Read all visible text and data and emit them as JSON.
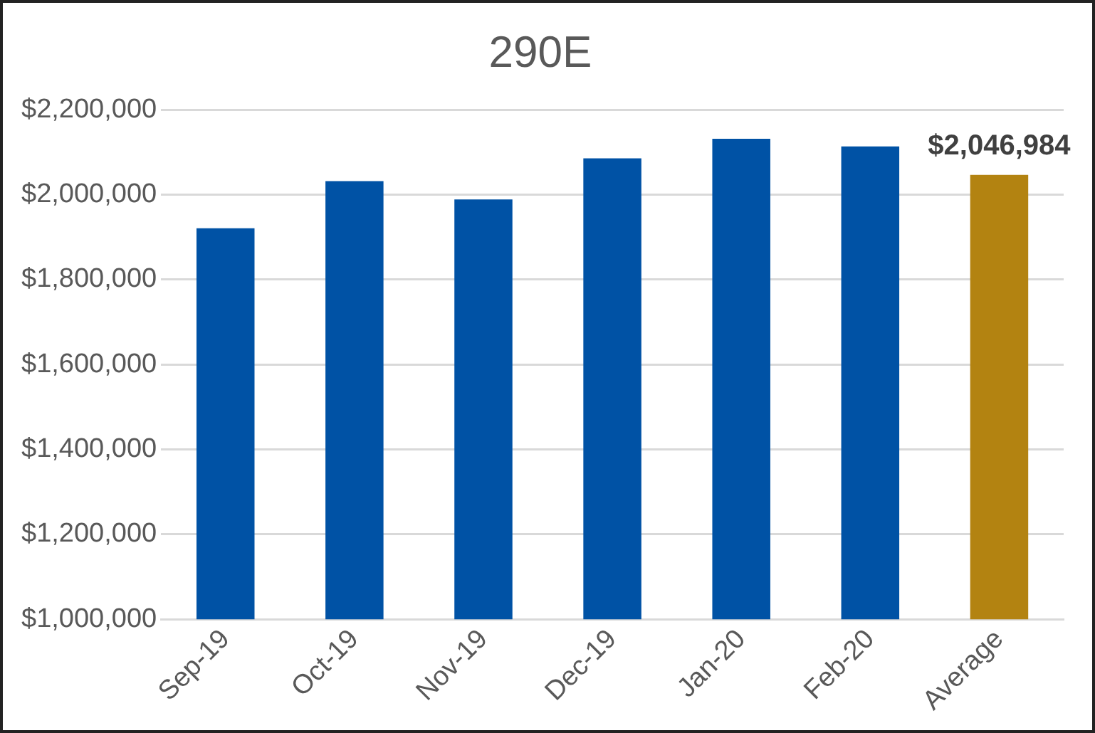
{
  "chart_data": {
    "type": "bar",
    "title": "290E",
    "categories": [
      "Sep-19",
      "Oct-19",
      "Nov-19",
      "Dec-19",
      "Jan-20",
      "Feb-20",
      "Average"
    ],
    "values": [
      1921000,
      2032000,
      1989000,
      2086000,
      2132000,
      2114000,
      2046984
    ],
    "colors": [
      "#0052a5",
      "#0052a5",
      "#0052a5",
      "#0052a5",
      "#0052a5",
      "#0052a5",
      "#b38311"
    ],
    "value_labels": [
      null,
      null,
      null,
      null,
      null,
      null,
      "$2,046,984"
    ],
    "ylim": [
      1000000,
      2200000
    ],
    "yticks": [
      {
        "value": 1000000,
        "label": "$1,000,000"
      },
      {
        "value": 1200000,
        "label": "$1,200,000"
      },
      {
        "value": 1400000,
        "label": "$1,400,000"
      },
      {
        "value": 1600000,
        "label": "$1,600,000"
      },
      {
        "value": 1800000,
        "label": "$1,800,000"
      },
      {
        "value": 2000000,
        "label": "$2,000,000"
      },
      {
        "value": 2200000,
        "label": "$2,200,000"
      }
    ],
    "grid": "y",
    "legend": false
  }
}
